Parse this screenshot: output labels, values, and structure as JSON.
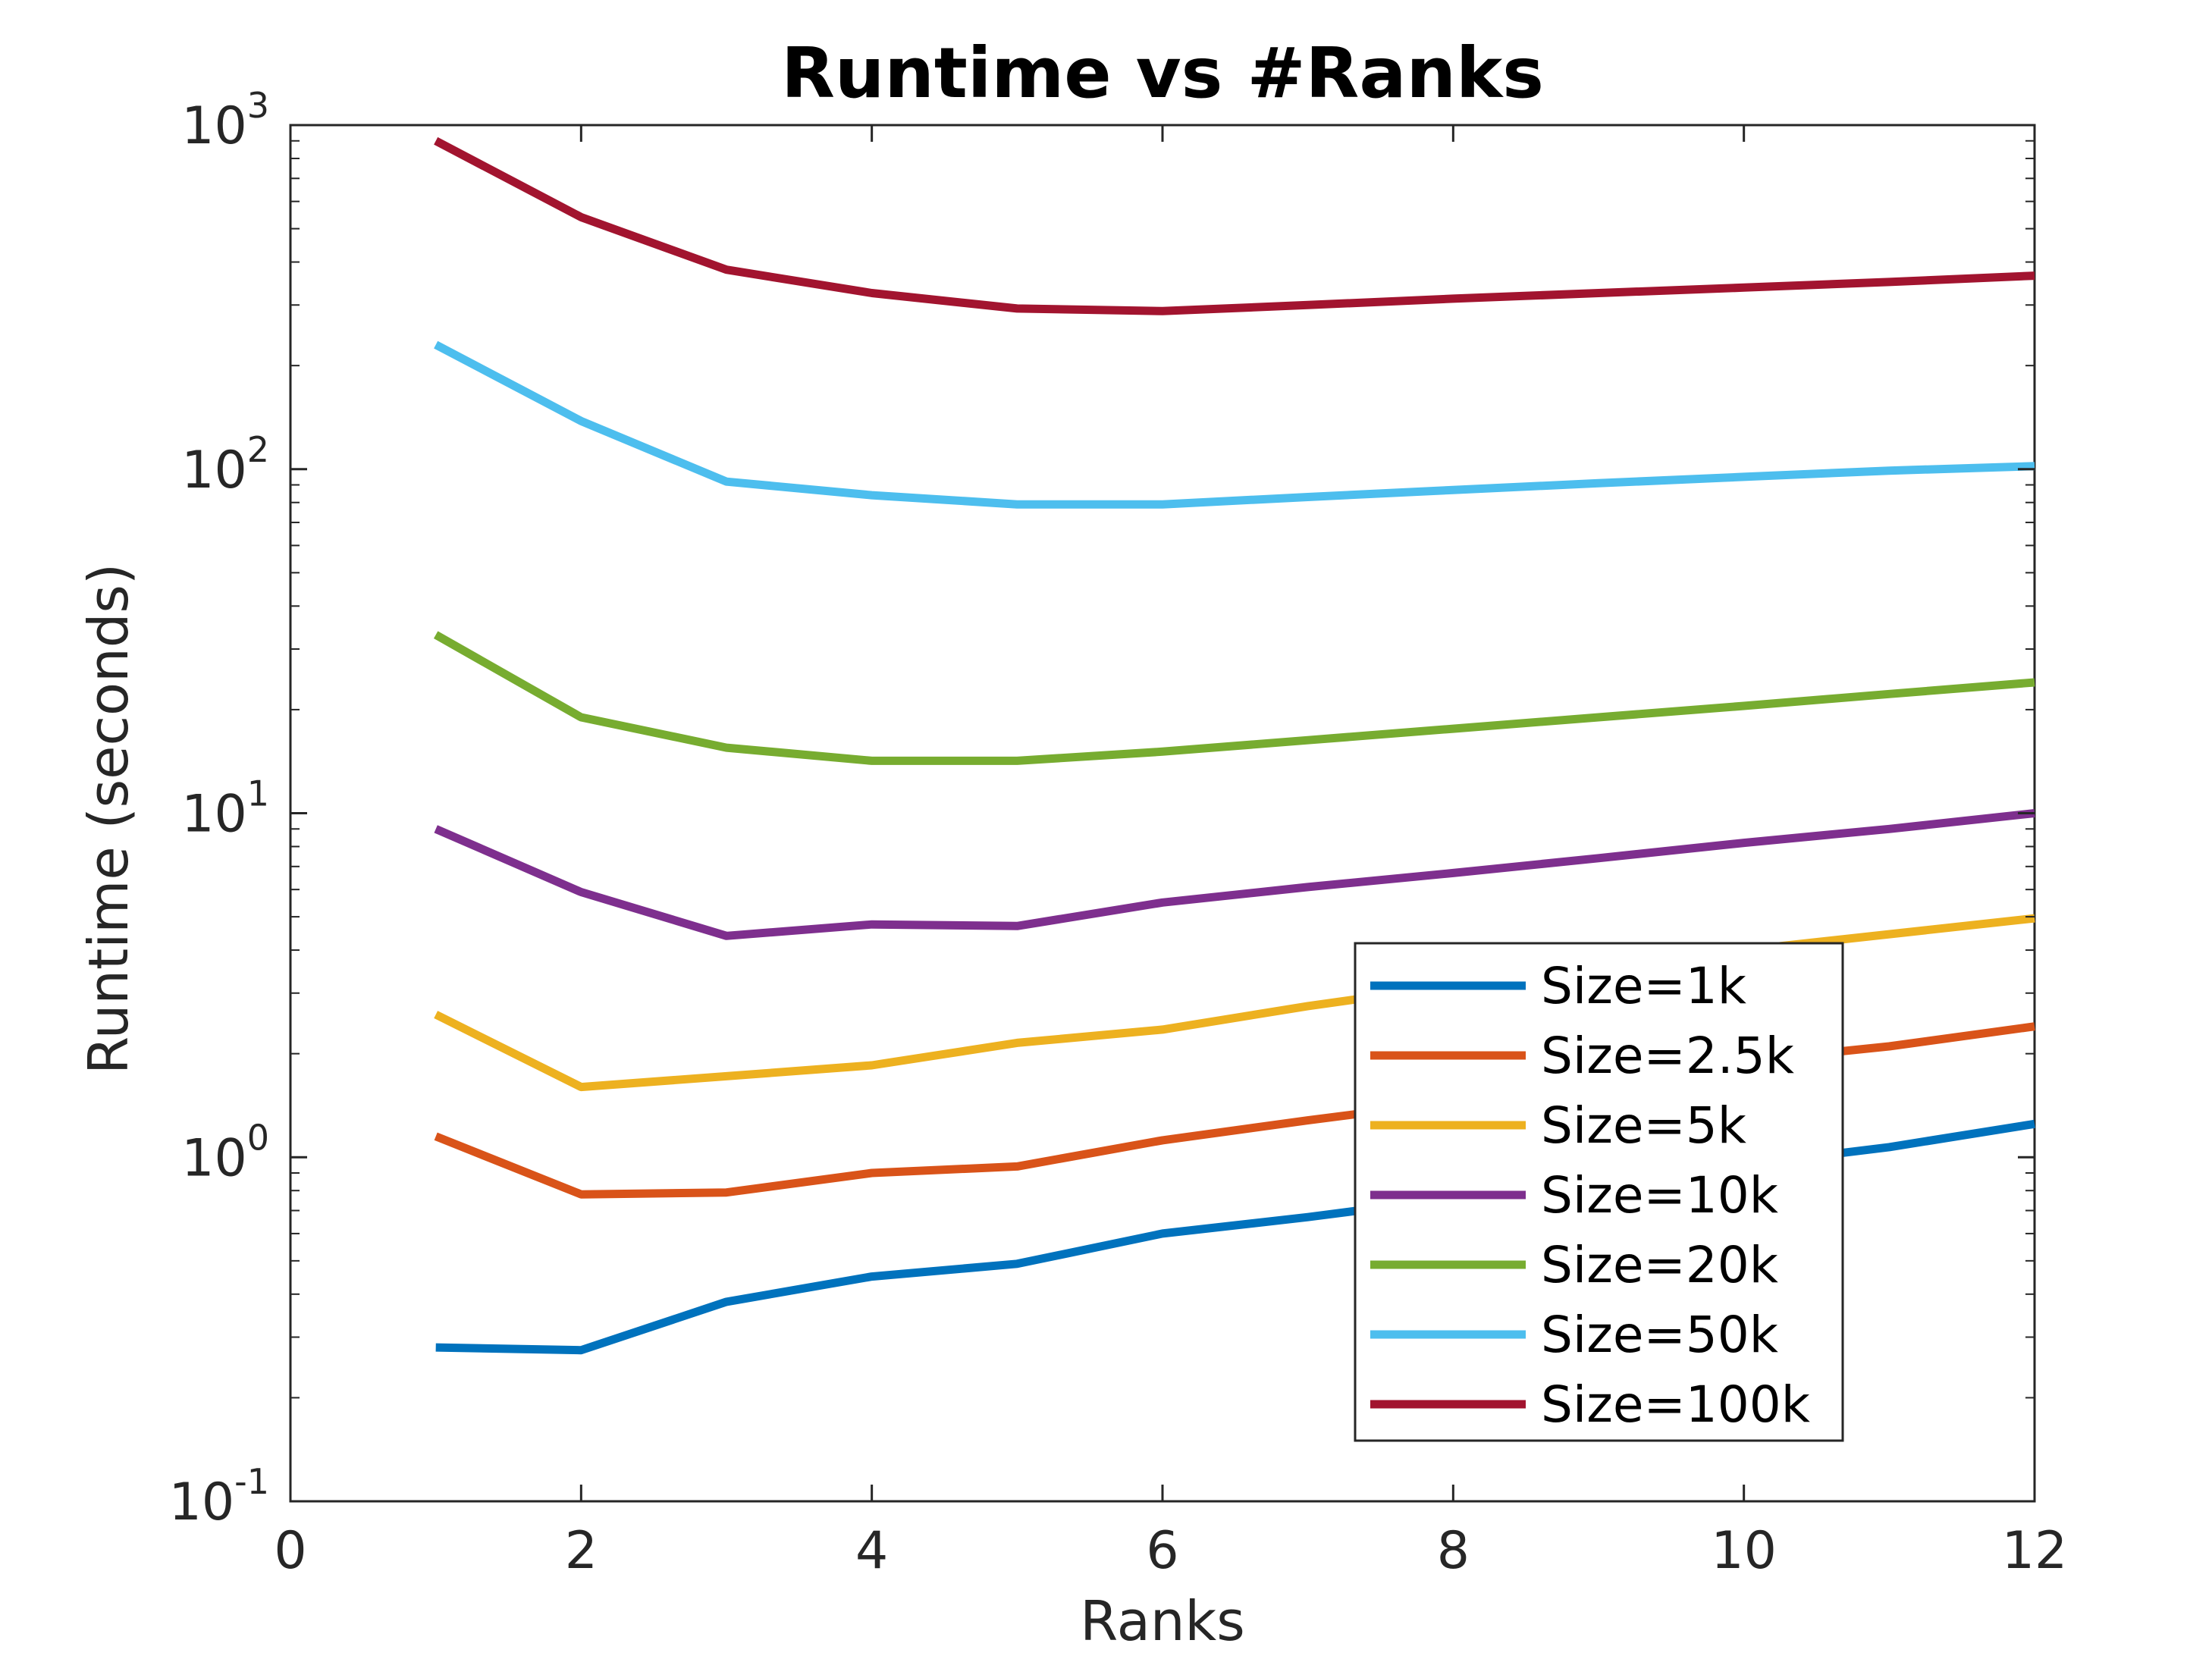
{
  "chart_data": {
    "type": "line",
    "title": "Runtime vs #Ranks",
    "xlabel": "Ranks",
    "ylabel": "Runtime (seconds)",
    "xlim": [
      0,
      12
    ],
    "ylim": [
      0.1,
      1000
    ],
    "yscale": "log",
    "grid": false,
    "legend_position": "bottom-right",
    "x_ticks": [
      0,
      2,
      4,
      6,
      8,
      10,
      12
    ],
    "y_ticks": [
      {
        "value": 0.1,
        "base": "10",
        "exp": "-1"
      },
      {
        "value": 1,
        "base": "10",
        "exp": "0"
      },
      {
        "value": 10,
        "base": "10",
        "exp": "1"
      },
      {
        "value": 100,
        "base": "10",
        "exp": "2"
      },
      {
        "value": 1000,
        "base": "10",
        "exp": "3"
      }
    ],
    "x": [
      1,
      2,
      3,
      4,
      5,
      6,
      7,
      8,
      9,
      10,
      11,
      12
    ],
    "series": [
      {
        "name": "Size=1k",
        "color": "#0072BD",
        "values": [
          0.28,
          0.275,
          0.38,
          0.45,
          0.49,
          0.6,
          0.67,
          0.76,
          0.85,
          0.95,
          1.07,
          1.25
        ]
      },
      {
        "name": "Size=2.5k",
        "color": "#D95319",
        "values": [
          1.15,
          0.78,
          0.79,
          0.9,
          0.94,
          1.12,
          1.28,
          1.45,
          1.65,
          1.9,
          2.1,
          2.4
        ]
      },
      {
        "name": "Size=5k",
        "color": "#EDB120",
        "values": [
          2.6,
          1.6,
          1.72,
          1.85,
          2.15,
          2.35,
          2.75,
          3.15,
          3.55,
          4.0,
          4.45,
          4.95
        ]
      },
      {
        "name": "Size=10k",
        "color": "#7E2F8E",
        "values": [
          9.0,
          5.9,
          4.4,
          4.75,
          4.7,
          5.5,
          6.1,
          6.7,
          7.4,
          8.2,
          9.0,
          10.0
        ]
      },
      {
        "name": "Size=20k",
        "color": "#77AC30",
        "values": [
          33,
          19,
          15.5,
          14.2,
          14.2,
          15.1,
          16.3,
          17.6,
          19.0,
          20.5,
          22.2,
          24
        ]
      },
      {
        "name": "Size=50k",
        "color": "#4DBEEE",
        "values": [
          230,
          138,
          92,
          84,
          79,
          79,
          83,
          87,
          91,
          95,
          99,
          102
        ]
      },
      {
        "name": "Size=100k",
        "color": "#A2142F",
        "values": [
          900,
          540,
          380,
          325,
          293,
          288,
          300,
          313,
          325,
          337,
          350,
          365
        ]
      }
    ]
  }
}
